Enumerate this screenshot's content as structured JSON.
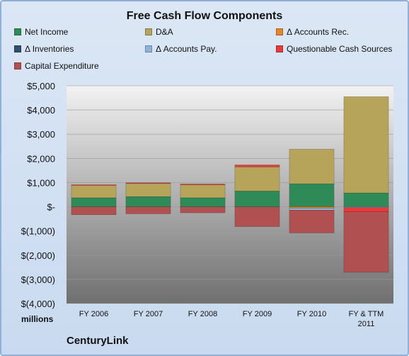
{
  "chart_data": {
    "type": "bar",
    "stacked": true,
    "title": "Free Cash Flow Components",
    "categories": [
      "FY 2006",
      "FY 2007",
      "FY 2008",
      "FY 2009",
      "FY 2010",
      "FY & TTM 2011"
    ],
    "series": [
      {
        "name": "Net Income",
        "color": "#2e8b57",
        "values": [
          370,
          420,
          370,
          650,
          950,
          570
        ]
      },
      {
        "name": "D&A",
        "color": "#b5a45a",
        "values": [
          520,
          540,
          540,
          1000,
          1430,
          3980
        ]
      },
      {
        "name": "Δ Accounts Rec.",
        "color": "#e6862a",
        "values": [
          0,
          0,
          0,
          0,
          -60,
          0
        ]
      },
      {
        "name": "Δ Inventories",
        "color": "#2f4f6f",
        "values": [
          0,
          0,
          0,
          0,
          0,
          0
        ]
      },
      {
        "name": "Δ Accounts Pay.",
        "color": "#8fb2d6",
        "values": [
          0,
          0,
          0,
          0,
          -80,
          -30
        ]
      },
      {
        "name": "Questionable Cash Sources",
        "color": "#e83a3a",
        "values": [
          20,
          30,
          30,
          80,
          0,
          -180
        ]
      },
      {
        "name": "Capital Expenditure",
        "color": "#b05050",
        "values": [
          -330,
          -290,
          -250,
          -820,
          -940,
          -2500
        ]
      }
    ],
    "ylim": [
      -4000,
      5000
    ],
    "yticks": [
      5000,
      4000,
      3000,
      2000,
      1000,
      0,
      -1000,
      -2000,
      -3000,
      -4000
    ],
    "ytick_labels": [
      "$5,000",
      "$4,000",
      "$3,000",
      "$2,000",
      "$1,000",
      "$-",
      "$(1,000)",
      "$(2,000)",
      "$(3,000)",
      "$(4,000)"
    ],
    "ylabel": "millions",
    "xlabel": "",
    "grid": true,
    "legend_position": "top"
  },
  "footer": {
    "units": "millions",
    "company": "CenturyLink"
  }
}
